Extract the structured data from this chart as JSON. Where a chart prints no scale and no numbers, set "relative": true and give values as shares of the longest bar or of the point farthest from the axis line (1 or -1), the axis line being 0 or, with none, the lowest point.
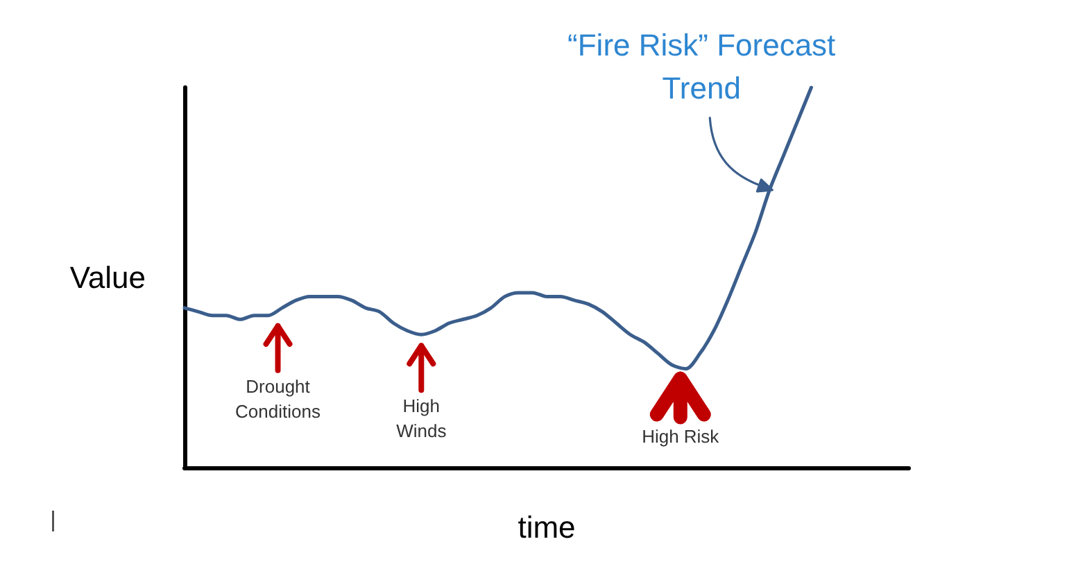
{
  "chart_data": {
    "type": "line",
    "relative": true,
    "xlabel": "time",
    "ylabel": "Value",
    "marker": "none",
    "color": "#3b5e8c",
    "categories": [
      null,
      null,
      null,
      null,
      null,
      null,
      null,
      null,
      null,
      null,
      null,
      null,
      null,
      null,
      null,
      null,
      null,
      null,
      null,
      null,
      null,
      null,
      null,
      null,
      null,
      null,
      null,
      null,
      null,
      null,
      null,
      null,
      null,
      null,
      null,
      null,
      null,
      null,
      null,
      null,
      null,
      null,
      null,
      null,
      null,
      null,
      null,
      null,
      null,
      null,
      null,
      null,
      null
    ],
    "values": [
      0.42,
      0.41,
      0.4,
      0.4,
      0.39,
      0.4,
      0.4,
      0.42,
      0.44,
      0.45,
      0.45,
      0.45,
      0.44,
      0.42,
      0.41,
      0.38,
      0.36,
      0.35,
      0.36,
      0.38,
      0.39,
      0.4,
      0.42,
      0.45,
      0.46,
      0.46,
      0.45,
      0.45,
      0.44,
      0.43,
      0.41,
      0.38,
      0.35,
      0.33,
      0.3,
      0.27,
      0.26,
      0.3,
      0.36,
      0.44,
      0.53,
      0.62,
      0.73,
      0.82,
      0.91,
      1,
      null,
      null,
      null,
      null,
      null,
      null,
      null
    ],
    "annotations": [
      "Drought Conditions",
      "High Winds",
      "High Risk",
      "“Fire Risk” Forecast Trend"
    ]
  }
}
